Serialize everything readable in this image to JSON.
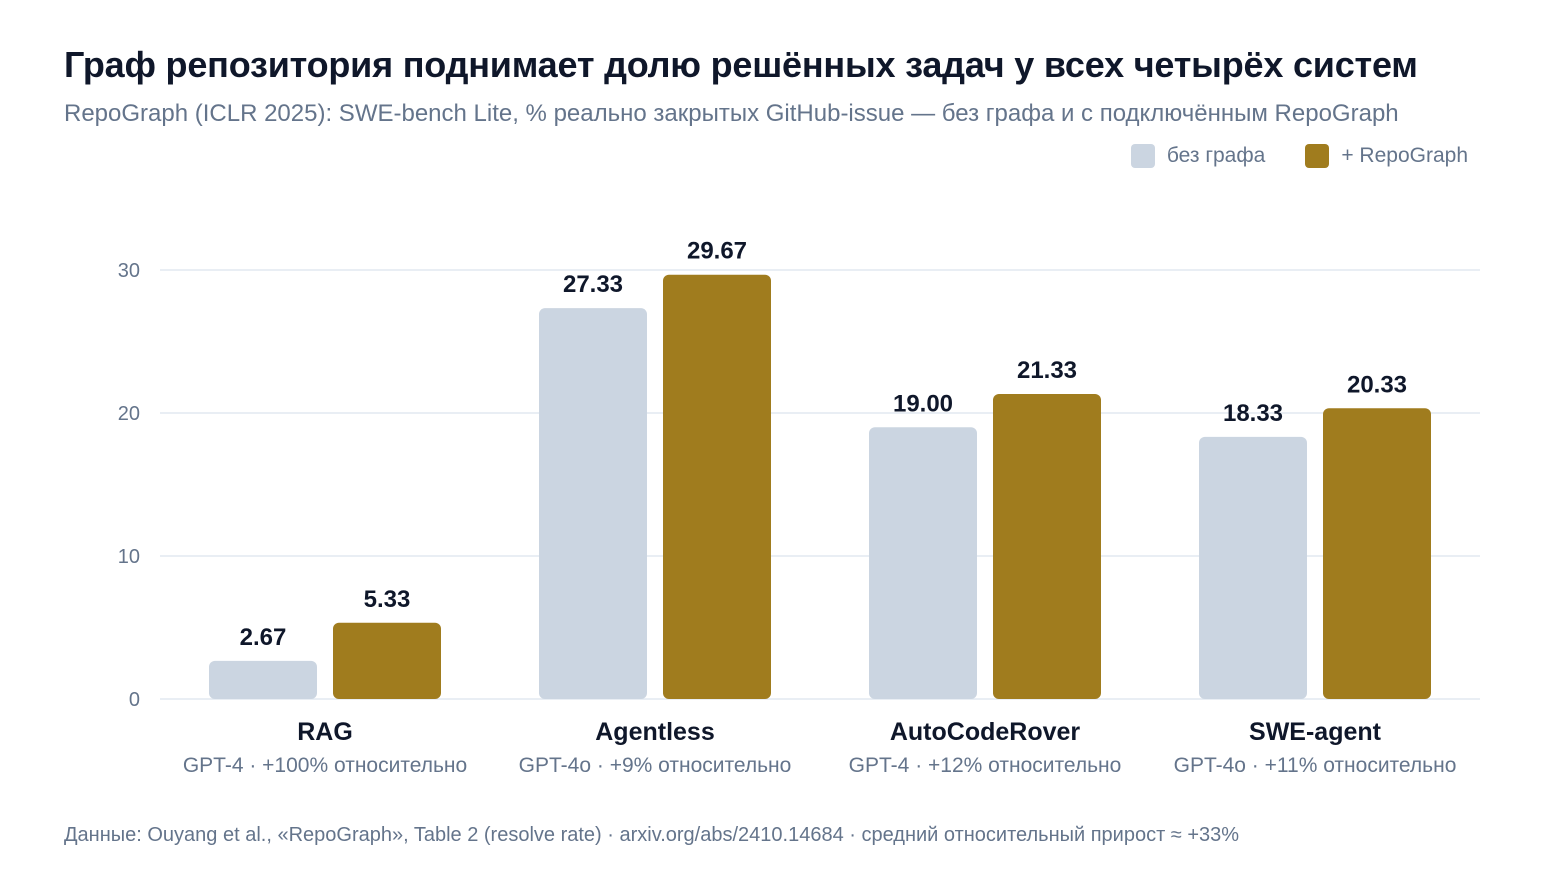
{
  "header": {
    "title": "Граф репозитория поднимает долю решённых задач у всех четырёх систем",
    "subtitle": "RepoGraph (ICLR 2025): SWE-bench Lite, % реально закрытых GitHub-issue — без графа и с подключённым RepoGraph"
  },
  "footer": {
    "source": "Данные: Ouyang et al., «RepoGraph», Table 2 (resolve rate) · arxiv.org/abs/2410.14684 · средний относительный прирост ≈ +33%"
  },
  "colors": {
    "baseline": "#cbd5e1",
    "repograph": "#a07c1e",
    "grid": "#e2e8f0",
    "tick": "#64748b",
    "value_label": "#0f172a"
  },
  "chart_data": {
    "type": "bar",
    "categories": [
      "RAG",
      "Agentless",
      "AutoCodeRover",
      "SWE-agent"
    ],
    "category_sublabels": [
      "GPT-4 · +100% относительно",
      "GPT-4o · +9% относительно",
      "GPT-4 · +12% относительно",
      "GPT-4o · +11% относительно"
    ],
    "series": [
      {
        "name": "без графа",
        "values": [
          2.67,
          27.33,
          19.0,
          18.33
        ],
        "labels": [
          "2.67",
          "27.33",
          "19.00",
          "18.33"
        ]
      },
      {
        "name": "+ RepoGraph",
        "values": [
          5.33,
          29.67,
          21.33,
          20.33
        ],
        "labels": [
          "5.33",
          "29.67",
          "21.33",
          "20.33"
        ]
      }
    ],
    "ylim": [
      0,
      30
    ],
    "yticks": [
      0,
      10,
      20,
      30
    ],
    "ytick_labels": [
      "0",
      "10",
      "20",
      "30"
    ],
    "grid": true,
    "legend_position": "top-right"
  }
}
